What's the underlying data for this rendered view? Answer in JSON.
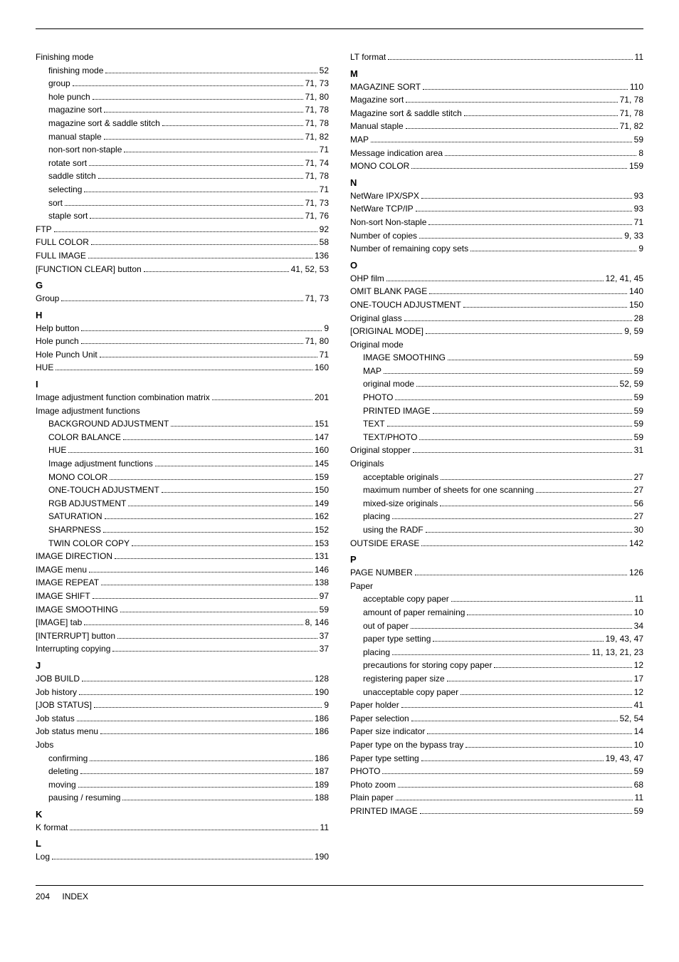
{
  "footer": {
    "pagenum": "204",
    "section": "INDEX"
  },
  "left": [
    {
      "type": "group",
      "label": "Finishing mode"
    },
    {
      "type": "sub",
      "label": "finishing mode",
      "pages": "52"
    },
    {
      "type": "sub",
      "label": "group",
      "pages": "71, 73"
    },
    {
      "type": "sub",
      "label": "hole punch",
      "pages": "71, 80"
    },
    {
      "type": "sub",
      "label": "magazine sort",
      "pages": "71, 78"
    },
    {
      "type": "sub",
      "label": "magazine sort & saddle stitch",
      "pages": "71, 78"
    },
    {
      "type": "sub",
      "label": "manual staple",
      "pages": "71, 82"
    },
    {
      "type": "sub",
      "label": "non-sort non-staple",
      "pages": "71"
    },
    {
      "type": "sub",
      "label": "rotate sort",
      "pages": "71, 74"
    },
    {
      "type": "sub",
      "label": "saddle stitch",
      "pages": "71, 78"
    },
    {
      "type": "sub",
      "label": "selecting",
      "pages": "71"
    },
    {
      "type": "sub",
      "label": "sort",
      "pages": "71, 73"
    },
    {
      "type": "sub",
      "label": "staple sort",
      "pages": "71, 76"
    },
    {
      "type": "entry",
      "label": "FTP",
      "pages": "92"
    },
    {
      "type": "entry",
      "label": "FULL COLOR",
      "pages": "58"
    },
    {
      "type": "entry",
      "label": "FULL IMAGE",
      "pages": "136"
    },
    {
      "type": "entry",
      "label": "[FUNCTION CLEAR] button",
      "pages": "41, 52, 53"
    },
    {
      "type": "letter",
      "label": "G"
    },
    {
      "type": "entry",
      "label": "Group",
      "pages": "71, 73"
    },
    {
      "type": "letter",
      "label": "H"
    },
    {
      "type": "entry",
      "label": "Help button",
      "pages": "9"
    },
    {
      "type": "entry",
      "label": "Hole punch",
      "pages": "71, 80"
    },
    {
      "type": "entry",
      "label": "Hole Punch Unit",
      "pages": "71"
    },
    {
      "type": "entry",
      "label": "HUE",
      "pages": "160"
    },
    {
      "type": "letter",
      "label": "I"
    },
    {
      "type": "entry",
      "label": "Image adjustment function combination matrix",
      "pages": "201"
    },
    {
      "type": "group",
      "label": "Image adjustment functions"
    },
    {
      "type": "sub",
      "label": "BACKGROUND ADJUSTMENT",
      "pages": "151"
    },
    {
      "type": "sub",
      "label": "COLOR BALANCE",
      "pages": "147"
    },
    {
      "type": "sub",
      "label": "HUE",
      "pages": "160"
    },
    {
      "type": "sub",
      "label": "Image adjustment functions",
      "pages": "145"
    },
    {
      "type": "sub",
      "label": "MONO COLOR",
      "pages": "159"
    },
    {
      "type": "sub",
      "label": "ONE-TOUCH ADJUSTMENT",
      "pages": "150"
    },
    {
      "type": "sub",
      "label": "RGB ADJUSTMENT",
      "pages": "149"
    },
    {
      "type": "sub",
      "label": "SATURATION",
      "pages": "162"
    },
    {
      "type": "sub",
      "label": "SHARPNESS",
      "pages": "152"
    },
    {
      "type": "sub",
      "label": "TWIN COLOR COPY",
      "pages": "153"
    },
    {
      "type": "entry",
      "label": "IMAGE DIRECTION",
      "pages": "131"
    },
    {
      "type": "entry",
      "label": "IMAGE menu",
      "pages": "146"
    },
    {
      "type": "entry",
      "label": "IMAGE REPEAT",
      "pages": "138"
    },
    {
      "type": "entry",
      "label": "IMAGE SHIFT",
      "pages": "97"
    },
    {
      "type": "entry",
      "label": "IMAGE SMOOTHING",
      "pages": "59"
    },
    {
      "type": "entry",
      "label": "[IMAGE] tab",
      "pages": "8, 146"
    },
    {
      "type": "entry",
      "label": "[INTERRUPT] button",
      "pages": "37"
    },
    {
      "type": "entry",
      "label": "Interrupting copying",
      "pages": "37"
    },
    {
      "type": "letter",
      "label": "J"
    },
    {
      "type": "entry",
      "label": "JOB BUILD",
      "pages": "128"
    },
    {
      "type": "entry",
      "label": "Job history",
      "pages": "190"
    },
    {
      "type": "entry",
      "label": "[JOB STATUS]",
      "pages": "9"
    },
    {
      "type": "entry",
      "label": "Job status",
      "pages": "186"
    },
    {
      "type": "entry",
      "label": "Job status menu",
      "pages": "186"
    },
    {
      "type": "group",
      "label": "Jobs"
    },
    {
      "type": "sub",
      "label": "confirming",
      "pages": "186"
    },
    {
      "type": "sub",
      "label": "deleting",
      "pages": "187"
    },
    {
      "type": "sub",
      "label": "moving",
      "pages": "189"
    },
    {
      "type": "sub",
      "label": "pausing / resuming",
      "pages": "188"
    },
    {
      "type": "letter",
      "label": "K"
    },
    {
      "type": "entry",
      "label": "K format",
      "pages": "11"
    },
    {
      "type": "letter",
      "label": "L"
    },
    {
      "type": "entry",
      "label": "Log",
      "pages": "190"
    }
  ],
  "right": [
    {
      "type": "entry",
      "label": "LT format",
      "pages": "11"
    },
    {
      "type": "letter",
      "label": "M"
    },
    {
      "type": "entry",
      "label": "MAGAZINE SORT",
      "pages": "110"
    },
    {
      "type": "entry",
      "label": "Magazine sort",
      "pages": "71, 78"
    },
    {
      "type": "entry",
      "label": "Magazine sort & saddle stitch",
      "pages": "71, 78"
    },
    {
      "type": "entry",
      "label": "Manual staple",
      "pages": "71, 82"
    },
    {
      "type": "entry",
      "label": "MAP",
      "pages": "59"
    },
    {
      "type": "entry",
      "label": "Message indication area",
      "pages": "8"
    },
    {
      "type": "entry",
      "label": "MONO COLOR",
      "pages": "159"
    },
    {
      "type": "letter",
      "label": "N"
    },
    {
      "type": "entry",
      "label": "NetWare IPX/SPX",
      "pages": "93"
    },
    {
      "type": "entry",
      "label": "NetWare TCP/IP",
      "pages": "93"
    },
    {
      "type": "entry",
      "label": "Non-sort Non-staple",
      "pages": "71"
    },
    {
      "type": "entry",
      "label": "Number of copies",
      "pages": "9, 33"
    },
    {
      "type": "entry",
      "label": "Number of remaining copy sets",
      "pages": "9"
    },
    {
      "type": "letter",
      "label": "O"
    },
    {
      "type": "entry",
      "label": "OHP film",
      "pages": "12, 41, 45"
    },
    {
      "type": "entry",
      "label": "OMIT BLANK PAGE",
      "pages": "140"
    },
    {
      "type": "entry",
      "label": "ONE-TOUCH ADJUSTMENT",
      "pages": "150"
    },
    {
      "type": "entry",
      "label": "Original glass",
      "pages": "28"
    },
    {
      "type": "entry",
      "label": "[ORIGINAL MODE]",
      "pages": "9, 59"
    },
    {
      "type": "group",
      "label": "Original mode"
    },
    {
      "type": "sub",
      "label": "IMAGE SMOOTHING",
      "pages": "59"
    },
    {
      "type": "sub",
      "label": "MAP",
      "pages": "59"
    },
    {
      "type": "sub",
      "label": "original mode",
      "pages": "52, 59"
    },
    {
      "type": "sub",
      "label": "PHOTO",
      "pages": "59"
    },
    {
      "type": "sub",
      "label": "PRINTED IMAGE",
      "pages": "59"
    },
    {
      "type": "sub",
      "label": "TEXT",
      "pages": "59"
    },
    {
      "type": "sub",
      "label": "TEXT/PHOTO",
      "pages": "59"
    },
    {
      "type": "entry",
      "label": "Original stopper",
      "pages": "31"
    },
    {
      "type": "group",
      "label": "Originals"
    },
    {
      "type": "sub",
      "label": "acceptable originals",
      "pages": "27"
    },
    {
      "type": "sub",
      "label": "maximum number of sheets for one scanning",
      "pages": "27"
    },
    {
      "type": "sub",
      "label": "mixed-size originals",
      "pages": "56"
    },
    {
      "type": "sub",
      "label": "placing",
      "pages": "27"
    },
    {
      "type": "sub",
      "label": "using the RADF",
      "pages": "30"
    },
    {
      "type": "entry",
      "label": "OUTSIDE ERASE",
      "pages": "142"
    },
    {
      "type": "letter",
      "label": "P"
    },
    {
      "type": "entry",
      "label": "PAGE NUMBER",
      "pages": "126"
    },
    {
      "type": "group",
      "label": "Paper"
    },
    {
      "type": "sub",
      "label": "acceptable copy paper",
      "pages": "11"
    },
    {
      "type": "sub",
      "label": "amount of paper remaining",
      "pages": "10"
    },
    {
      "type": "sub",
      "label": "out of paper",
      "pages": "34"
    },
    {
      "type": "sub",
      "label": "paper type setting",
      "pages": "19, 43, 47"
    },
    {
      "type": "sub",
      "label": "placing",
      "pages": "11, 13, 21, 23"
    },
    {
      "type": "sub",
      "label": "precautions for storing copy paper",
      "pages": "12"
    },
    {
      "type": "sub",
      "label": "registering paper size",
      "pages": "17"
    },
    {
      "type": "sub",
      "label": "unacceptable copy paper",
      "pages": "12"
    },
    {
      "type": "entry",
      "label": "Paper holder",
      "pages": "41"
    },
    {
      "type": "entry",
      "label": "Paper selection",
      "pages": "52, 54"
    },
    {
      "type": "entry",
      "label": "Paper size indicator",
      "pages": "14"
    },
    {
      "type": "entry",
      "label": "Paper type on the bypass tray",
      "pages": "10"
    },
    {
      "type": "entry",
      "label": "Paper type setting",
      "pages": "19, 43, 47"
    },
    {
      "type": "entry",
      "label": "PHOTO",
      "pages": "59"
    },
    {
      "type": "entry",
      "label": "Photo zoom",
      "pages": "68"
    },
    {
      "type": "entry",
      "label": "Plain paper",
      "pages": "11"
    },
    {
      "type": "entry",
      "label": "PRINTED IMAGE",
      "pages": "59"
    }
  ]
}
